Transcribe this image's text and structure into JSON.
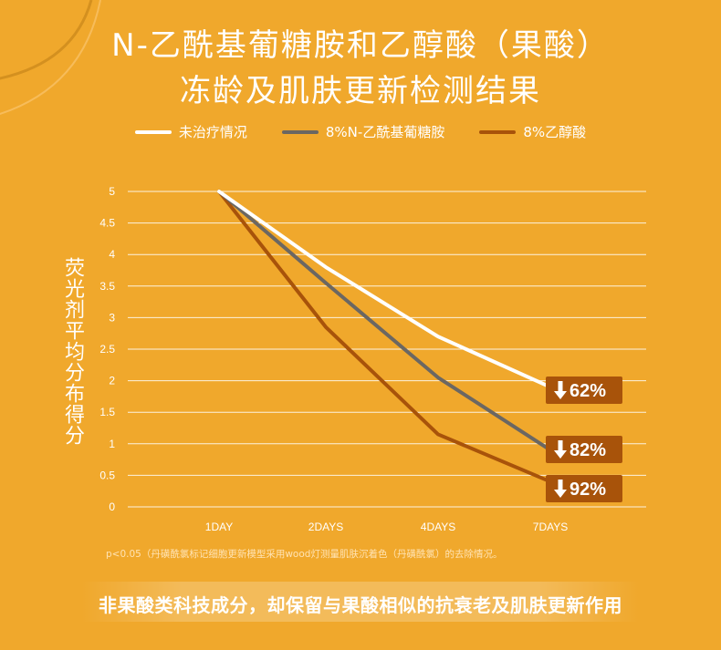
{
  "header": {
    "title_line1": "N-乙酰基葡糖胺和乙醇酸（果酸）",
    "title_line2": "冻龄及肌肤更新检测结果"
  },
  "chart_data": {
    "type": "line",
    "categories": [
      "1DAY",
      "2DAYS",
      "4DAYS",
      "7DAYS"
    ],
    "ylabel": "荧光剂平均分布得分",
    "ylim": [
      0,
      5
    ],
    "y_ticks": [
      "0",
      "0.5",
      "1",
      "1.5",
      "2",
      "2.5",
      "3",
      "3.5",
      "4",
      "4.5",
      "5"
    ],
    "grid": true,
    "legend_position": "top",
    "series": [
      {
        "name": "未治疗情况",
        "color": "#ffffff",
        "values": [
          5,
          3.8,
          2.7,
          1.9
        ],
        "reduction_label": "62%"
      },
      {
        "name": "8%N-乙酰基葡糖胺",
        "color": "#6b6762",
        "values": [
          5,
          3.55,
          2.05,
          0.9
        ],
        "reduction_label": "82%"
      },
      {
        "name": "8%乙醇酸",
        "color": "#a8530a",
        "values": [
          5,
          2.85,
          1.15,
          0.4
        ],
        "reduction_label": "92%"
      }
    ]
  },
  "footnote": "p<0.05（丹磺酰氯标记细胞更新模型采用wood灯测量肌肤沉着色（丹磺酰氯）的去除情况。",
  "tagline": "非果酸类科技成分，却保留与果酸相似的抗衰老及肌肤更新作用",
  "colors": {
    "background": "#f0a82c",
    "badge": "#a8530a",
    "grid": "#ffffff"
  },
  "icons": {
    "decrease": "arrow-down-icon"
  }
}
